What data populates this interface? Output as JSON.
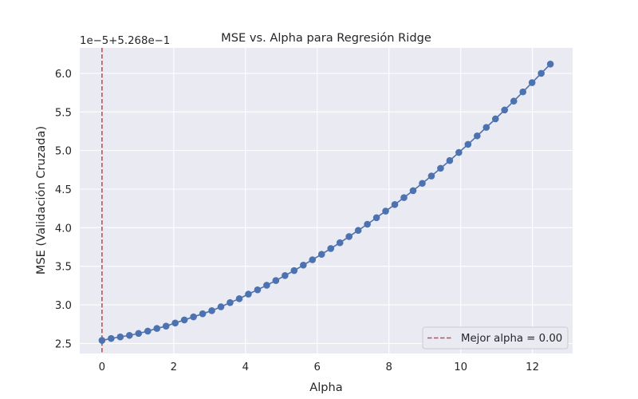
{
  "chart_data": {
    "type": "line",
    "title": "MSE vs. Alpha para Regresión Ridge",
    "xlabel": "Alpha",
    "ylabel": "MSE (Validación Cruzada)",
    "y_offset_text": "1e−5+5.268e−1",
    "xlim": [
      -0.62,
      13.12
    ],
    "ylim": [
      2.37,
      6.33
    ],
    "x_ticks": [
      0,
      2,
      4,
      6,
      8,
      10,
      12
    ],
    "x_tick_labels": [
      "0",
      "2",
      "4",
      "6",
      "8",
      "10",
      "12"
    ],
    "y_ticks": [
      2.5,
      3.0,
      3.5,
      4.0,
      4.5,
      5.0,
      5.5,
      6.0
    ],
    "y_tick_labels": [
      "2.5",
      "3.0",
      "3.5",
      "4.0",
      "4.5",
      "5.0",
      "5.5",
      "6.0"
    ],
    "grid": true,
    "background": "#eaeaf2",
    "series": [
      {
        "color": "#4c72b0",
        "marker": "circle",
        "x": [
          0.0,
          0.255,
          0.51,
          0.765,
          1.02,
          1.276,
          1.531,
          1.786,
          2.041,
          2.296,
          2.551,
          2.806,
          3.061,
          3.316,
          3.571,
          3.827,
          4.082,
          4.337,
          4.592,
          4.847,
          5.102,
          5.357,
          5.612,
          5.867,
          6.122,
          6.378,
          6.633,
          6.888,
          7.143,
          7.398,
          7.653,
          7.908,
          8.163,
          8.418,
          8.673,
          8.929,
          9.184,
          9.439,
          9.694,
          9.949,
          10.204,
          10.459,
          10.714,
          10.969,
          11.224,
          11.48,
          11.735,
          11.99,
          12.245,
          12.5
        ],
        "y": [
          2.54,
          2.565,
          2.585,
          2.605,
          2.63,
          2.66,
          2.695,
          2.725,
          2.765,
          2.805,
          2.845,
          2.885,
          2.925,
          2.975,
          3.03,
          3.08,
          3.14,
          3.195,
          3.255,
          3.315,
          3.38,
          3.445,
          3.515,
          3.585,
          3.655,
          3.73,
          3.805,
          3.885,
          3.965,
          4.045,
          4.13,
          4.215,
          4.3,
          4.39,
          4.48,
          4.575,
          4.67,
          4.77,
          4.87,
          4.975,
          5.08,
          5.19,
          5.3,
          5.41,
          5.525,
          5.64,
          5.76,
          5.88,
          6.0,
          6.12
        ]
      }
    ],
    "best_alpha_line": {
      "x": 0.0,
      "color": "#c44e52",
      "style": "dashed",
      "label": "Mejor alpha = 0.00"
    },
    "legend": {
      "placement": "lower-right",
      "entries": [
        "Mejor alpha = 0.00"
      ]
    }
  }
}
